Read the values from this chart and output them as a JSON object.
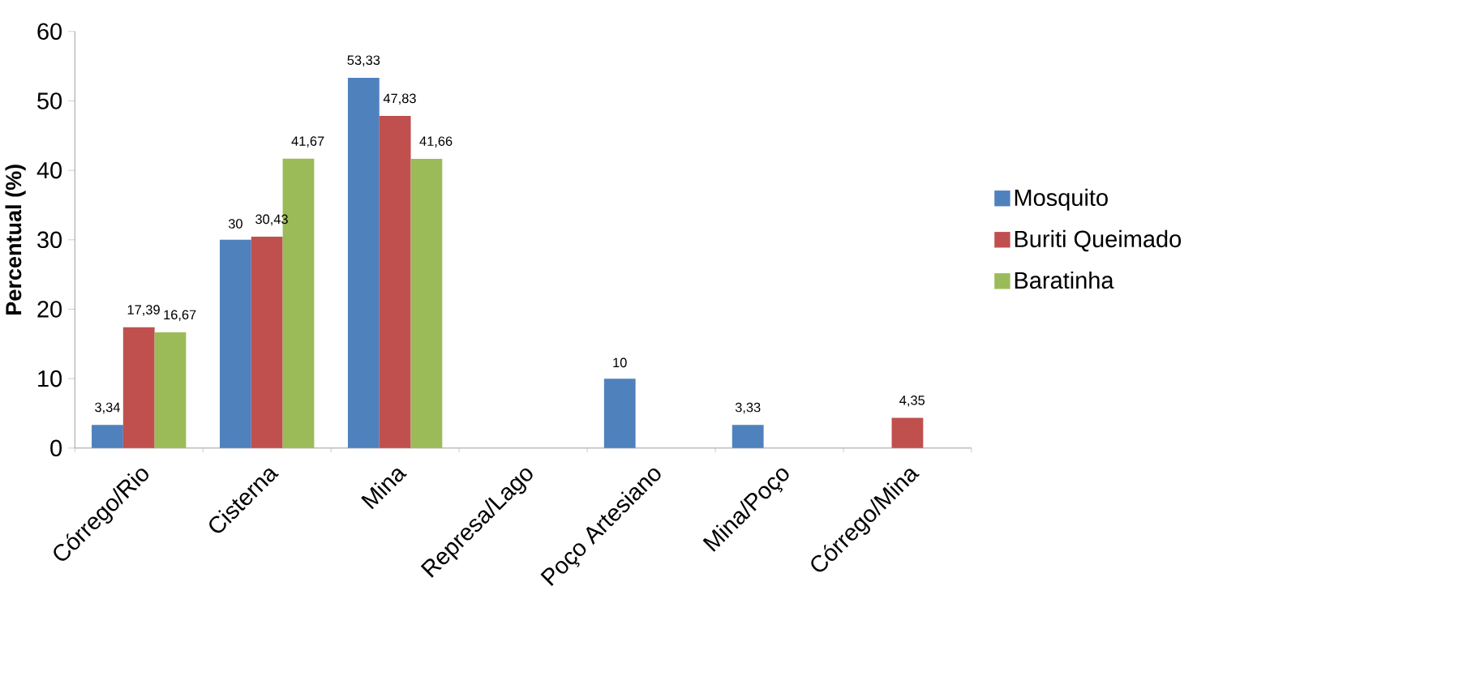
{
  "chart_data": {
    "type": "bar",
    "ylabel": "Percentual (%)",
    "categories": [
      "Córrego/Rio",
      "Cisterna",
      "Mina",
      "Represa/Lago",
      "Poço Artesiano",
      "Mina/Poço",
      "Córrego/Mina"
    ],
    "series": [
      {
        "name": "Mosquito",
        "color": "#4f81bd",
        "values": [
          3.34,
          30,
          53.33,
          null,
          10,
          3.33,
          null
        ],
        "value_labels": [
          "3,34",
          "30",
          "53,33",
          null,
          "10",
          "3,33",
          null
        ]
      },
      {
        "name": "Buriti Queimado",
        "color": "#c0504d",
        "values": [
          17.39,
          30.43,
          47.83,
          null,
          null,
          null,
          4.35
        ],
        "value_labels": [
          "17,39",
          "30,43",
          "47,83",
          null,
          null,
          null,
          "4,35"
        ]
      },
      {
        "name": "Baratinha",
        "color": "#9bbb59",
        "values": [
          16.67,
          41.67,
          41.66,
          null,
          null,
          null,
          null
        ],
        "value_labels": [
          "16,67",
          "41,67",
          "41,66",
          null,
          null,
          null,
          null
        ]
      }
    ],
    "ylim": [
      0,
      60
    ],
    "yticks": [
      0,
      10,
      20,
      30,
      40,
      50,
      60
    ],
    "grid": false,
    "legend": "right"
  }
}
